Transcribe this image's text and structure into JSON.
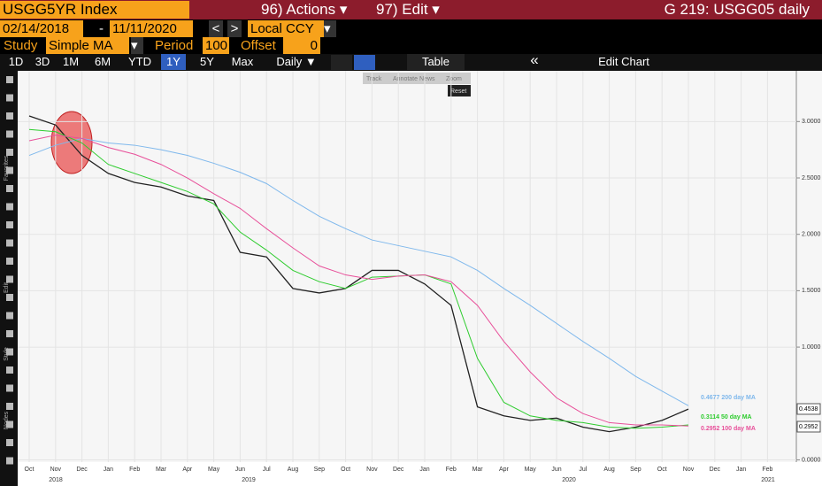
{
  "ui": {
    "ticker": "USGG5YR Index",
    "actions": "96) Actions ▾",
    "edit": "97) Edit ▾",
    "screen": "G 219: USGG05 daily",
    "start_date": "02/14/2018",
    "dash": "-",
    "end_date": "11/11/2020",
    "prev": "<",
    "next": ">",
    "currency": "Local CCY",
    "dropdown": "▾",
    "study_label": "Study",
    "study": "Simple MA",
    "period_label": "Period",
    "period": "100",
    "offset_label": "Offset",
    "offset": "0",
    "ranges": [
      "1D",
      "3D",
      "1M",
      "6M",
      "YTD",
      "1Y",
      "5Y",
      "Max"
    ],
    "frequency": "Daily ▼",
    "table": "Table",
    "collapse": "«",
    "edit_chart": "Edit Chart",
    "mini_tools": [
      "Track",
      "Annotate",
      "News",
      "Zoom"
    ],
    "reset": "Reset",
    "side_labels": [
      "Favorites",
      "Edit",
      "Style",
      "Nodes"
    ]
  },
  "chart_data": {
    "type": "line",
    "categories": [
      "Oct",
      "Nov",
      "Dec",
      "Jan",
      "Feb",
      "Mar",
      "Apr",
      "May",
      "Jun",
      "Jul",
      "Aug",
      "Sep",
      "Oct",
      "Nov",
      "Dec",
      "Jan",
      "Feb",
      "Mar",
      "Apr",
      "May",
      "Jun",
      "Jul",
      "Aug",
      "Sep",
      "Oct",
      "Nov",
      "Dec",
      "Jan",
      "Feb"
    ],
    "year_labels": [
      "2018",
      "2019",
      "2020",
      "2021"
    ],
    "series": [
      {
        "name": "USGG5YR Index",
        "color": "#222222",
        "values": [
          3.05,
          2.97,
          2.7,
          2.54,
          2.46,
          2.42,
          2.34,
          2.3,
          1.84,
          1.8,
          1.52,
          1.48,
          1.52,
          1.68,
          1.68,
          1.56,
          1.37,
          0.47,
          0.39,
          0.35,
          0.37,
          0.29,
          0.25,
          0.29,
          0.35,
          0.45,
          null,
          null,
          null
        ]
      },
      {
        "name": "0.4677 200 day MA",
        "color": "#7fb8ec",
        "values": [
          2.7,
          2.79,
          2.85,
          2.81,
          2.79,
          2.75,
          2.7,
          2.63,
          2.55,
          2.45,
          2.3,
          2.16,
          2.05,
          1.95,
          1.9,
          1.85,
          1.8,
          1.68,
          1.52,
          1.37,
          1.21,
          1.05,
          0.9,
          0.74,
          0.61,
          0.48,
          null,
          null,
          null
        ]
      },
      {
        "name": "0.3114 50 day MA",
        "color": "#2ecc2e",
        "values": [
          2.93,
          2.91,
          2.81,
          2.62,
          2.54,
          2.46,
          2.38,
          2.27,
          2.02,
          1.86,
          1.68,
          1.58,
          1.52,
          1.62,
          1.63,
          1.64,
          1.56,
          0.9,
          0.51,
          0.39,
          0.35,
          0.33,
          0.29,
          0.28,
          0.29,
          0.31,
          null,
          null,
          null
        ]
      },
      {
        "name": "0.2952 100 day MA",
        "color": "#e8509a",
        "values": [
          2.83,
          2.88,
          2.85,
          2.77,
          2.71,
          2.62,
          2.5,
          2.36,
          2.23,
          2.05,
          1.88,
          1.72,
          1.64,
          1.6,
          1.63,
          1.64,
          1.58,
          1.37,
          1.05,
          0.78,
          0.55,
          0.41,
          0.33,
          0.31,
          0.31,
          0.3,
          null,
          null,
          null
        ]
      }
    ],
    "last_value_labels": [
      "0.4538",
      "0.2952"
    ],
    "ylim": [
      -0.02,
      3.45
    ],
    "yticks": [
      {
        "value": 0,
        "label": "0.0000"
      },
      {
        "value": 1,
        "label": "1.0000"
      },
      {
        "value": 1.5,
        "label": "1.5000"
      },
      {
        "value": 2,
        "label": "2.0000"
      },
      {
        "value": 2.5,
        "label": "2.5000"
      },
      {
        "value": 3,
        "label": "3.0000"
      }
    ],
    "grid": true
  }
}
